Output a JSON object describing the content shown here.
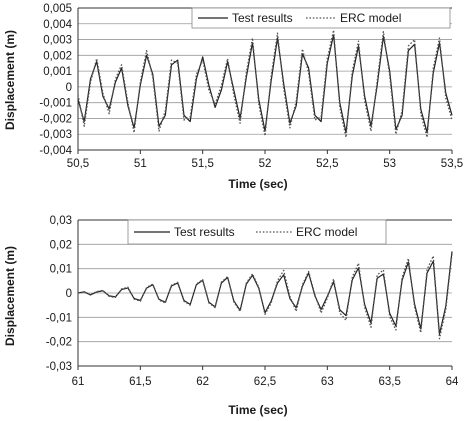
{
  "chart_data": [
    {
      "type": "line",
      "xlabel": "Time (sec)",
      "ylabel": "Displacement (m)",
      "xlim": [
        50.5,
        53.5
      ],
      "ylim": [
        -0.004,
        0.005
      ],
      "x_ticks": [
        50.5,
        51,
        51.5,
        52,
        52.5,
        53,
        53.5
      ],
      "x_tick_labels": [
        "50,5",
        "51",
        "51,5",
        "52",
        "52,5",
        "53",
        "53,5"
      ],
      "y_ticks": [
        0.005,
        0.004,
        0.003,
        0.002,
        0.001,
        0,
        -0.001,
        -0.002,
        -0.003,
        -0.004
      ],
      "y_tick_labels": [
        "0,005",
        "0,004",
        "0,003",
        "0,002",
        "0,001",
        "0",
        "-0,001",
        "-0,002",
        "-0,003",
        "-0,004"
      ],
      "grid": "horizontal",
      "legend": "top-right",
      "x": [
        50.5,
        50.55,
        50.6,
        50.65,
        50.7,
        50.75,
        50.8,
        50.85,
        50.9,
        50.95,
        51.0,
        51.05,
        51.1,
        51.15,
        51.2,
        51.25,
        51.3,
        51.35,
        51.4,
        51.45,
        51.5,
        51.55,
        51.6,
        51.65,
        51.7,
        51.75,
        51.8,
        51.85,
        51.9,
        51.95,
        52.0,
        52.05,
        52.1,
        52.15,
        52.2,
        52.25,
        52.3,
        52.35,
        52.4,
        52.45,
        52.5,
        52.55,
        52.6,
        52.65,
        52.7,
        52.75,
        52.8,
        52.85,
        52.9,
        52.95,
        53.0,
        53.05,
        53.1,
        53.15,
        53.2,
        53.25,
        53.3,
        53.35,
        53.4,
        53.45,
        53.5
      ],
      "series": [
        {
          "name": "Test results",
          "style": "solid",
          "values": [
            -0.0008,
            -0.0022,
            0.0005,
            0.0016,
            -0.0006,
            -0.0014,
            0.0003,
            0.0012,
            -0.0012,
            -0.0026,
            0.0001,
            0.002,
            0.0008,
            -0.0025,
            -0.0018,
            0.0014,
            0.0017,
            -0.0018,
            -0.0022,
            0.0005,
            0.0019,
            0.0001,
            -0.0013,
            -0.0002,
            0.0016,
            -0.0002,
            -0.002,
            0.0006,
            0.0028,
            -0.0008,
            -0.0028,
            0.0004,
            0.0031,
            0.0002,
            -0.0023,
            -0.0012,
            0.0021,
            0.0012,
            -0.0018,
            -0.0022,
            0.0015,
            0.0033,
            -0.001,
            -0.0029,
            0.0007,
            0.0026,
            -0.0006,
            -0.0025,
            0.0001,
            0.0032,
            0.001,
            -0.0027,
            -0.0018,
            0.0023,
            0.0027,
            -0.0014,
            -0.0029,
            0.0009,
            0.0028,
            -0.0004,
            -0.0018
          ]
        },
        {
          "name": "ERC model",
          "style": "dotted",
          "values": [
            -0.0005,
            -0.0025,
            0.0003,
            0.0018,
            -0.0004,
            -0.0017,
            0.0005,
            0.0014,
            -0.001,
            -0.0029,
            0.0003,
            0.0023,
            0.0006,
            -0.0028,
            -0.0015,
            0.0017,
            0.0015,
            -0.0021,
            -0.0019,
            0.0008,
            0.0017,
            -0.0002,
            -0.0011,
            0.0001,
            0.0018,
            -0.0005,
            -0.0023,
            0.0009,
            0.0031,
            -0.0011,
            -0.0031,
            0.0007,
            0.0034,
            -0.0001,
            -0.0026,
            -0.0009,
            0.0024,
            0.0009,
            -0.0021,
            -0.0019,
            0.0018,
            0.0036,
            -0.0013,
            -0.0032,
            0.001,
            0.0029,
            -0.0009,
            -0.0028,
            0.0004,
            0.0035,
            0.0007,
            -0.003,
            -0.0015,
            0.0026,
            0.003,
            -0.0017,
            -0.0032,
            0.0012,
            0.0031,
            -0.0007,
            -0.0021
          ]
        }
      ]
    },
    {
      "type": "line",
      "xlabel": "Time (sec)",
      "ylabel": "Displacement (m)",
      "xlim": [
        61,
        64
      ],
      "ylim": [
        -0.03,
        0.03
      ],
      "x_ticks": [
        61,
        61.5,
        62,
        62.5,
        63,
        63.5,
        64
      ],
      "x_tick_labels": [
        "61",
        "61,5",
        "62",
        "62,5",
        "63",
        "63,5",
        "64"
      ],
      "y_ticks": [
        0.03,
        0.02,
        0.01,
        0,
        -0.01,
        -0.02,
        -0.03
      ],
      "y_tick_labels": [
        "0,03",
        "0,02",
        "0,01",
        "0",
        "-0,01",
        "-0,02",
        "-0,03"
      ],
      "grid": "horizontal",
      "legend": "top-center",
      "x": [
        61.0,
        61.05,
        61.1,
        61.15,
        61.2,
        61.25,
        61.3,
        61.35,
        61.4,
        61.45,
        61.5,
        61.55,
        61.6,
        61.65,
        61.7,
        61.75,
        61.8,
        61.85,
        61.9,
        61.95,
        62.0,
        62.05,
        62.1,
        62.15,
        62.2,
        62.25,
        62.3,
        62.35,
        62.4,
        62.45,
        62.5,
        62.55,
        62.6,
        62.65,
        62.7,
        62.75,
        62.8,
        62.85,
        62.9,
        62.95,
        63.0,
        63.05,
        63.1,
        63.15,
        63.2,
        63.25,
        63.3,
        63.35,
        63.4,
        63.45,
        63.5,
        63.55,
        63.6,
        63.65,
        63.7,
        63.75,
        63.8,
        63.85,
        63.9,
        63.95,
        64.0
      ],
      "series": [
        {
          "name": "Test results",
          "style": "solid",
          "values": [
            0.0,
            0.0005,
            -0.0008,
            0.0004,
            0.0009,
            -0.0012,
            -0.0016,
            0.0014,
            0.0021,
            -0.0022,
            -0.0031,
            0.002,
            0.0034,
            -0.0026,
            -0.0038,
            0.0029,
            0.0041,
            -0.0031,
            -0.0047,
            0.0034,
            0.0052,
            -0.0038,
            -0.0057,
            0.0041,
            0.0064,
            -0.0032,
            -0.0071,
            0.0036,
            0.0073,
            0.0019,
            -0.0081,
            -0.0033,
            0.0041,
            0.0075,
            -0.0023,
            -0.0061,
            0.0027,
            0.0082,
            -0.0012,
            -0.0068,
            -0.0014,
            0.0046,
            -0.0069,
            -0.0093,
            0.0054,
            0.0103,
            -0.0048,
            -0.0123,
            0.0061,
            0.0078,
            -0.0084,
            -0.0136,
            0.0052,
            0.0127,
            -0.0046,
            -0.0148,
            0.0082,
            0.0131,
            -0.0169,
            -0.0054,
            0.0171
          ]
        },
        {
          "name": "ERC model",
          "style": "dotted",
          "values": [
            0.0,
            0.0003,
            -0.0006,
            0.0006,
            0.0011,
            -0.0014,
            -0.0018,
            0.0017,
            0.0024,
            -0.0025,
            -0.0034,
            0.0023,
            0.0037,
            -0.0029,
            -0.0041,
            0.0032,
            0.0044,
            -0.0034,
            -0.005,
            0.0037,
            0.0055,
            -0.0041,
            -0.006,
            0.0045,
            0.0068,
            -0.0036,
            -0.0076,
            0.0041,
            0.0079,
            0.0024,
            -0.0088,
            -0.0041,
            0.005,
            0.0093,
            -0.0014,
            -0.0075,
            0.0034,
            0.0088,
            -0.0006,
            -0.0082,
            -0.0021,
            0.0058,
            -0.0082,
            -0.0112,
            0.0066,
            0.0122,
            -0.0059,
            -0.0141,
            0.0074,
            0.0095,
            -0.0097,
            -0.0152,
            0.0064,
            0.0142,
            -0.0058,
            -0.0163,
            0.0097,
            0.0152,
            -0.0188,
            -0.0068,
            0.0161
          ]
        }
      ]
    }
  ]
}
